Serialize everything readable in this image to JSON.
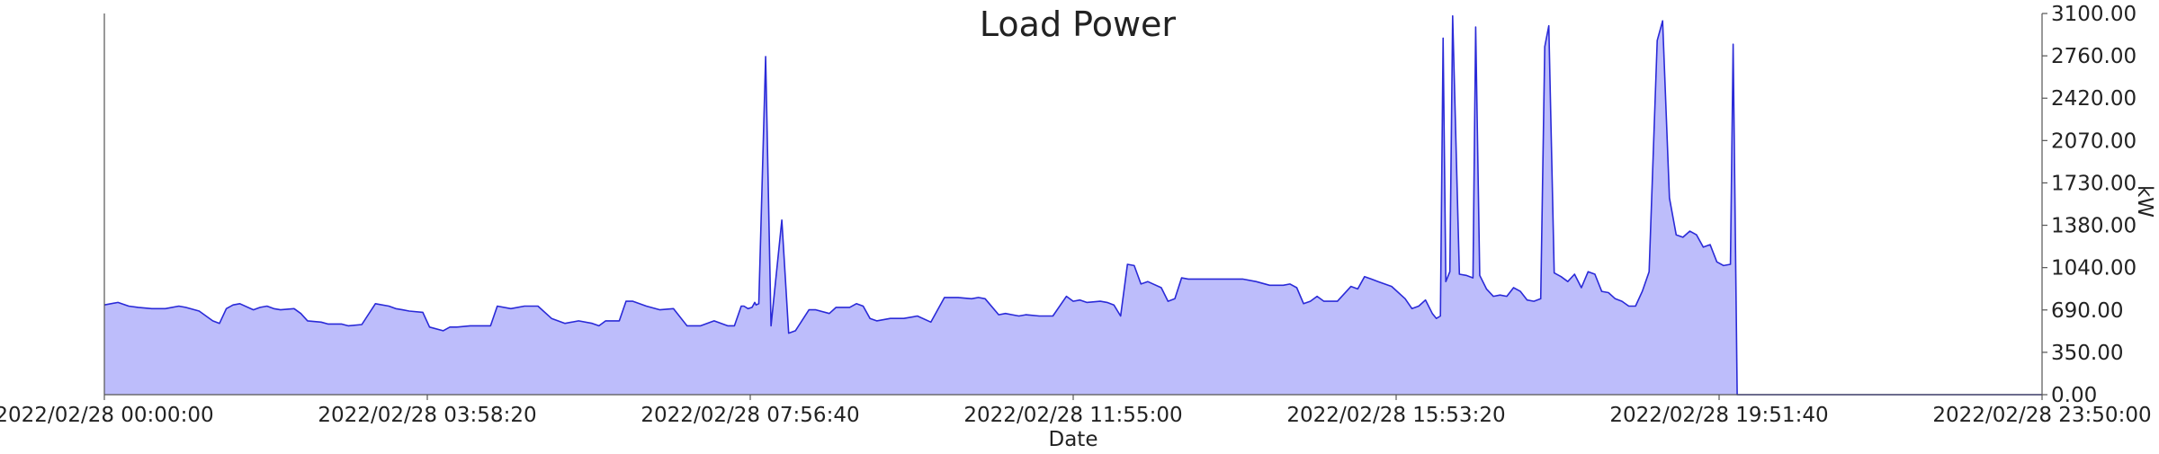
{
  "chart_data": {
    "type": "area",
    "title": "Load Power",
    "xlabel": "Date",
    "ylabel": "kW",
    "y_axis_side": "right",
    "ylim": [
      0,
      3100
    ],
    "grid": false,
    "colors": {
      "line": "#2a2ad8",
      "fill": "#bdbdfb"
    },
    "x_tick_labels": [
      "2022/02/28 00:00:00",
      "2022/02/28 03:58:20",
      "2022/02/28 07:56:40",
      "2022/02/28 11:55:00",
      "2022/02/28 15:53:20",
      "2022/02/28 19:51:40",
      "2022/02/28 23:50:00"
    ],
    "y_tick_labels": [
      "0.00",
      "350.00",
      "690.00",
      "1040.00",
      "1380.00",
      "1730.00",
      "2070.00",
      "2420.00",
      "2760.00",
      "3100.00"
    ],
    "x_range_minutes": [
      0,
      1430
    ],
    "series": [
      {
        "x_minutes": [
          0,
          10,
          18,
          25,
          35,
          45,
          55,
          60,
          70,
          80,
          85,
          90,
          95,
          100,
          110,
          115,
          120,
          125,
          130,
          140,
          145,
          150,
          160,
          165,
          175,
          180,
          190,
          200,
          210,
          215,
          220,
          225,
          235,
          240,
          250,
          255,
          260,
          270,
          280,
          285,
          290,
          300,
          310,
          320,
          330,
          340,
          350,
          360,
          365,
          370,
          380,
          385,
          390,
          400,
          410,
          420,
          430,
          440,
          450,
          460,
          465,
          470,
          472,
          475,
          478,
          480,
          481,
          483,
          488,
          492,
          500,
          505,
          510,
          520,
          525,
          535,
          540,
          550,
          555,
          560,
          565,
          570,
          580,
          590,
          600,
          610,
          620,
          630,
          640,
          645,
          650,
          660,
          665,
          670,
          675,
          680,
          690,
          700,
          710,
          715,
          720,
          725,
          735,
          740,
          745,
          750,
          755,
          760,
          765,
          770,
          780,
          785,
          790,
          795,
          800,
          810,
          820,
          830,
          840,
          850,
          860,
          870,
          875,
          880,
          885,
          890,
          895,
          900,
          910,
          920,
          925,
          930,
          935,
          940,
          950,
          960,
          965,
          970,
          975,
          980,
          983,
          986,
          988,
          990,
          993,
          995,
          1000,
          1005,
          1010,
          1012,
          1015,
          1020,
          1025,
          1030,
          1035,
          1040,
          1045,
          1050,
          1055,
          1060,
          1063,
          1066,
          1070,
          1075,
          1080,
          1085,
          1090,
          1095,
          1100,
          1105,
          1110,
          1115,
          1120,
          1125,
          1130,
          1135,
          1140,
          1146,
          1150,
          1155,
          1160,
          1165,
          1170,
          1175,
          1180,
          1185,
          1190,
          1195,
          1200,
          1202,
          1205,
          1430
        ],
        "values": [
          730,
          750,
          720,
          710,
          700,
          700,
          720,
          710,
          680,
          600,
          580,
          700,
          730,
          740,
          690,
          710,
          720,
          700,
          690,
          700,
          660,
          600,
          590,
          575,
          575,
          560,
          570,
          740,
          720,
          700,
          690,
          680,
          670,
          550,
          520,
          550,
          550,
          560,
          560,
          560,
          720,
          700,
          720,
          720,
          620,
          580,
          600,
          580,
          560,
          600,
          600,
          760,
          760,
          720,
          690,
          700,
          560,
          560,
          600,
          560,
          560,
          720,
          720,
          700,
          710,
          750,
          730,
          740,
          2750,
          560,
          1420,
          500,
          520,
          690,
          690,
          660,
          710,
          710,
          740,
          720,
          620,
          600,
          620,
          620,
          640,
          590,
          790,
          790,
          780,
          790,
          780,
          650,
          660,
          650,
          640,
          650,
          640,
          640,
          800,
          760,
          770,
          750,
          760,
          750,
          730,
          640,
          1060,
          1050,
          900,
          920,
          870,
          760,
          780,
          950,
          940,
          940,
          940,
          940,
          940,
          920,
          890,
          890,
          900,
          870,
          740,
          760,
          800,
          760,
          760,
          880,
          860,
          960,
          940,
          920,
          880,
          780,
          700,
          720,
          770,
          660,
          620,
          640,
          2900,
          920,
          1000,
          3080,
          980,
          970,
          950,
          2990,
          970,
          860,
          800,
          810,
          800,
          870,
          840,
          770,
          760,
          780,
          2830,
          3000,
          990,
          960,
          920,
          980,
          870,
          1000,
          980,
          840,
          830,
          780,
          760,
          720,
          720,
          840,
          1000,
          2880,
          3040,
          1600,
          1300,
          1280,
          1330,
          1300,
          1200,
          1220,
          1080,
          1050,
          1060,
          2850,
          0,
          0
        ]
      }
    ]
  }
}
